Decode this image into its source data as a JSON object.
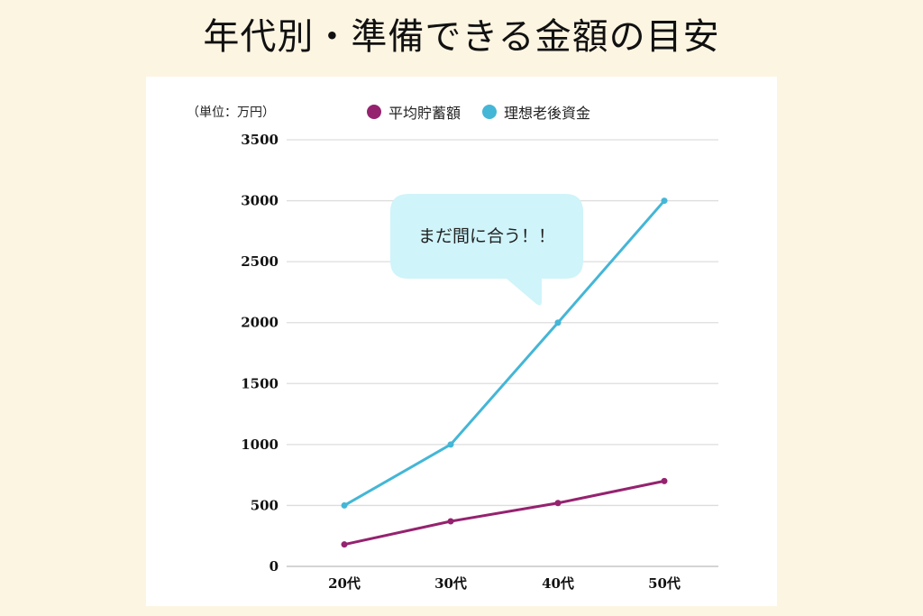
{
  "title": "年代別・準備できる金額の目安",
  "unit_label": "（単位：万円）",
  "legend": [
    {
      "label": "平均貯蓄額",
      "color": "#95226f"
    },
    {
      "label": "理想老後資金",
      "color": "#44b6d6"
    }
  ],
  "callout": {
    "text": "まだ間に合う！！",
    "color": "#cff4fa"
  },
  "colors": {
    "background": "#fcf5e2",
    "card": "#ffffff",
    "grid": "#dddddd"
  },
  "chart_data": {
    "type": "line",
    "title": "年代別・準備できる金額の目安",
    "xlabel": "",
    "ylabel": "（単位：万円）",
    "categories": [
      "20代",
      "30代",
      "40代",
      "50代"
    ],
    "series": [
      {
        "name": "平均貯蓄額",
        "color": "#95226f",
        "values": [
          180,
          370,
          520,
          700
        ]
      },
      {
        "name": "理想老後資金",
        "color": "#44b6d6",
        "values": [
          500,
          1000,
          2000,
          3000
        ]
      }
    ],
    "ylim": [
      0,
      3500
    ],
    "yticks": [
      0,
      500,
      1000,
      1500,
      2000,
      2500,
      3000,
      3500
    ],
    "grid": true,
    "legend_position": "top",
    "annotations": [
      {
        "text": "まだ間に合う！！",
        "near": "30代-40代 理想老後資金"
      }
    ]
  }
}
